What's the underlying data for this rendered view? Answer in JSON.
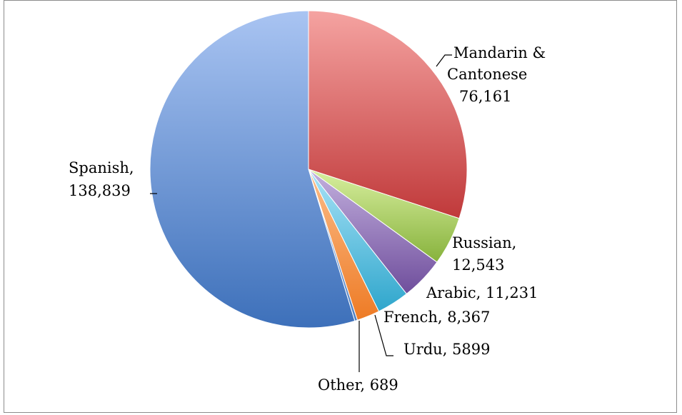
{
  "chart_data": {
    "type": "pie",
    "title": "",
    "start_angle_deg": 0,
    "direction": "clockwise",
    "slices": [
      {
        "label": "Mandarin & Cantonese",
        "value": 76161,
        "text_lines": [
          "Mandarin &",
          "Cantonese",
          "76,161"
        ],
        "color_light": "#f5a3a1",
        "color_dark": "#c0393a"
      },
      {
        "label": "Russian",
        "value": 12543,
        "text_lines": [
          "Russian,",
          "12,543"
        ],
        "color_light": "#d8ef9f",
        "color_dark": "#87b23c"
      },
      {
        "label": "Arabic",
        "value": 11231,
        "text_lines": [
          "Arabic, 11,231"
        ],
        "color_light": "#c3b0de",
        "color_dark": "#6f4e9c"
      },
      {
        "label": "French",
        "value": 8367,
        "text_lines": [
          "French, 8,367"
        ],
        "color_light": "#a9e3f7",
        "color_dark": "#2fa6cc"
      },
      {
        "label": "Urdu",
        "value": 5899,
        "text_lines": [
          "Urdu, 5899"
        ],
        "color_light": "#fbbd8a",
        "color_dark": "#ee7b25"
      },
      {
        "label": "Other",
        "value": 689,
        "text_lines": [
          "Other, 689"
        ],
        "color_light": "#aac4ec",
        "color_dark": "#4e7ec0"
      },
      {
        "label": "Spanish",
        "value": 138839,
        "text_lines": [
          "Spanish,",
          "138,839"
        ],
        "color_light": "#a9c4f2",
        "color_dark": "#3d70ba"
      }
    ]
  }
}
